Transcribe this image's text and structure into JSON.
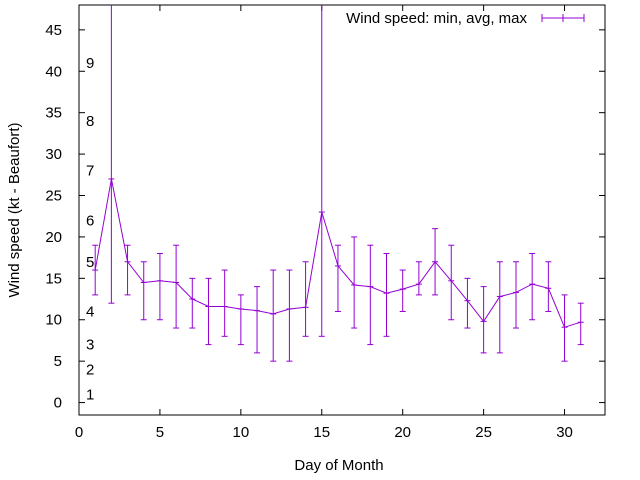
{
  "chart_data": {
    "type": "line",
    "title": "",
    "xlabel": "Day of Month",
    "ylabel": "Wind speed (kt - Beaufort)",
    "xlim": [
      0,
      32.5
    ],
    "ylim": [
      -1.5,
      48
    ],
    "xticks": [
      "0",
      "5",
      "10",
      "15",
      "20",
      "25",
      "30"
    ],
    "xtick_values": [
      0,
      5,
      10,
      15,
      20,
      25,
      30
    ],
    "yticks": [
      "0",
      "5",
      "10",
      "15",
      "20",
      "25",
      "30",
      "35",
      "40",
      "45"
    ],
    "ytick_values": [
      0,
      5,
      10,
      15,
      20,
      25,
      30,
      35,
      40,
      45
    ],
    "beaufort_labels": [
      {
        "text": "1",
        "y": 1
      },
      {
        "text": "2",
        "y": 4
      },
      {
        "text": "3",
        "y": 7
      },
      {
        "text": "4",
        "y": 11
      },
      {
        "text": "5",
        "y": 17
      },
      {
        "text": "6",
        "y": 22
      },
      {
        "text": "7",
        "y": 28
      },
      {
        "text": "8",
        "y": 34
      },
      {
        "text": "9",
        "y": 41
      }
    ],
    "legend": {
      "label": "Wind speed: min, avg, max",
      "placement": "top-right"
    },
    "color": "#9400d3",
    "series": [
      {
        "name": "Wind speed: min, avg, max",
        "x": [
          1,
          2,
          3,
          4,
          5,
          6,
          7,
          8,
          9,
          10,
          11,
          12,
          13,
          14,
          15,
          16,
          17,
          18,
          19,
          20,
          21,
          22,
          23,
          24,
          25,
          26,
          27,
          28,
          29,
          30,
          31
        ],
        "avg": [
          16.0,
          27.0,
          17.0,
          14.5,
          14.7,
          14.5,
          12.5,
          11.6,
          11.6,
          11.3,
          11.1,
          10.7,
          11.3,
          11.5,
          23.0,
          16.5,
          14.2,
          14.0,
          13.2,
          13.7,
          14.3,
          17.0,
          14.7,
          12.3,
          9.8,
          12.8,
          13.3,
          14.3,
          13.8,
          9.1,
          9.7
        ],
        "min": [
          13,
          12,
          13,
          10,
          10,
          9,
          9,
          7,
          8,
          7,
          6,
          5,
          5,
          8,
          8,
          11,
          9,
          7,
          8,
          11,
          13,
          13,
          10,
          9,
          6,
          6,
          9,
          10,
          11,
          5,
          7
        ],
        "max": [
          19,
          50,
          19,
          17,
          18,
          19,
          15,
          15,
          16,
          13,
          14,
          16,
          16,
          17,
          50,
          19,
          20,
          19,
          18,
          16,
          17,
          21,
          19,
          15,
          14,
          17,
          17,
          18,
          17,
          13,
          12
        ]
      }
    ]
  }
}
